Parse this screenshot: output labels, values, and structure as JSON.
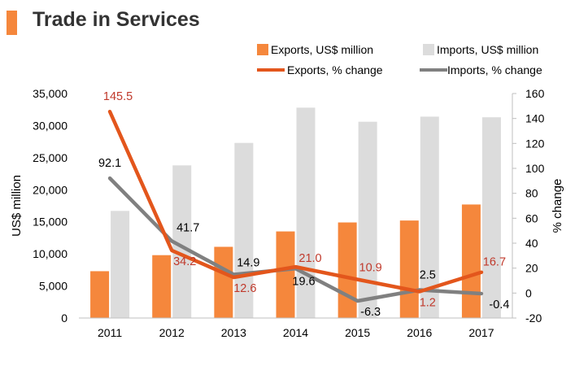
{
  "header": {
    "title": "Trade in Services"
  },
  "colors": {
    "exports_bar": "#F5873C",
    "imports_bar": "#DCDCDC",
    "exports_line": "#E3561C",
    "imports_line": "#808080",
    "exports_label": "#C0392B",
    "imports_label": "#000000",
    "title_accent": "#F5873C"
  },
  "chart_data": {
    "type": "bar",
    "categories": [
      "2011",
      "2012",
      "2013",
      "2014",
      "2015",
      "2016",
      "2017"
    ],
    "series": [
      {
        "name": "Exports, US$ million",
        "type": "bar",
        "axis": "left",
        "values": [
          7300,
          9800,
          11100,
          13500,
          14900,
          15200,
          17700
        ]
      },
      {
        "name": "Imports, US$ million",
        "type": "bar",
        "axis": "left",
        "values": [
          16700,
          23800,
          27300,
          32800,
          30600,
          31400,
          31300
        ]
      },
      {
        "name": "Exports, % change",
        "type": "line",
        "axis": "right",
        "values": [
          145.5,
          34.2,
          12.6,
          21.0,
          10.9,
          1.2,
          16.7
        ],
        "labels": [
          "145.5",
          "34.2",
          "12.6",
          "21.0",
          "10.9",
          "1.2",
          "16.7"
        ]
      },
      {
        "name": "Imports, % change",
        "type": "line",
        "axis": "right",
        "values": [
          92.1,
          41.7,
          14.9,
          19.6,
          -6.3,
          2.5,
          -0.4
        ],
        "labels": [
          "92.1",
          "41.7",
          "14.9",
          "19.6",
          "-6.3",
          "2.5",
          "-0.4"
        ]
      }
    ],
    "ylabel": "US$ million",
    "y2label": "% change",
    "ylim": [
      0,
      35000
    ],
    "y2lim": [
      -20,
      160
    ],
    "yticks": [
      "0",
      "5,000",
      "10,000",
      "15,000",
      "20,000",
      "25,000",
      "30,000",
      "35,000"
    ],
    "y2ticks": [
      "-20",
      "0",
      "20",
      "40",
      "60",
      "80",
      "100",
      "120",
      "140",
      "160"
    ],
    "grid": false,
    "legend_position": "top-right"
  }
}
